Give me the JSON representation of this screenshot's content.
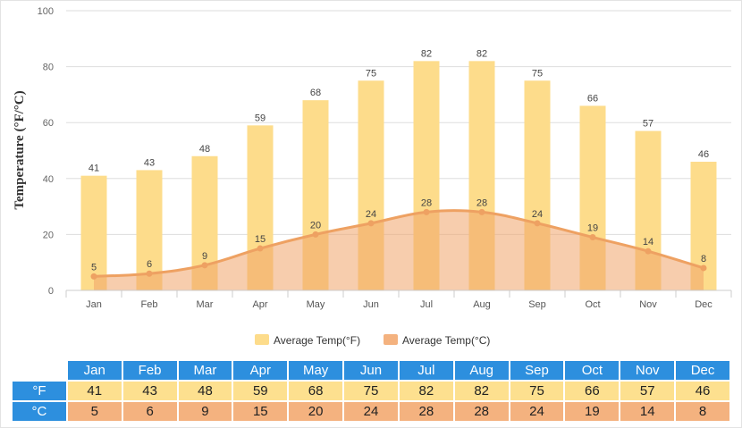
{
  "colors": {
    "fahrenheit_bar": "#fddc8b",
    "celsius_area": "#f0a46a",
    "celsius_line": "#eea162",
    "table_header": "#2d8fde",
    "table_f_cell": "#fde08f",
    "table_c_cell": "#f4b27f",
    "grid": "#dddddd"
  },
  "chart_data": {
    "type": "bar",
    "title": "",
    "xlabel": "",
    "ylabel": "Temperature (°F/°C)",
    "ylim": [
      0,
      100
    ],
    "yticks": [
      0,
      20,
      40,
      60,
      80,
      100
    ],
    "categories": [
      "Jan",
      "Feb",
      "Mar",
      "Apr",
      "May",
      "Jun",
      "Jul",
      "Aug",
      "Sep",
      "Oct",
      "Nov",
      "Dec"
    ],
    "series": [
      {
        "name": "Average Temp(°F)",
        "kind": "bar",
        "values": [
          41,
          43,
          48,
          59,
          68,
          75,
          82,
          82,
          75,
          66,
          57,
          46
        ]
      },
      {
        "name": "Average Temp(°C)",
        "kind": "area-spline",
        "values": [
          5,
          6,
          9,
          15,
          20,
          24,
          28,
          28,
          24,
          19,
          14,
          8
        ]
      }
    ],
    "legend_position": "bottom-center",
    "grid": true
  },
  "table": {
    "months": [
      "Jan",
      "Feb",
      "Mar",
      "Apr",
      "May",
      "Jun",
      "Jul",
      "Aug",
      "Sep",
      "Oct",
      "Nov",
      "Dec"
    ],
    "rows": [
      {
        "label": "°F",
        "values": [
          "41",
          "43",
          "48",
          "59",
          "68",
          "75",
          "82",
          "82",
          "75",
          "66",
          "57",
          "46"
        ]
      },
      {
        "label": "°C",
        "values": [
          "5",
          "6",
          "9",
          "15",
          "20",
          "24",
          "28",
          "28",
          "24",
          "19",
          "14",
          "8"
        ]
      }
    ]
  }
}
